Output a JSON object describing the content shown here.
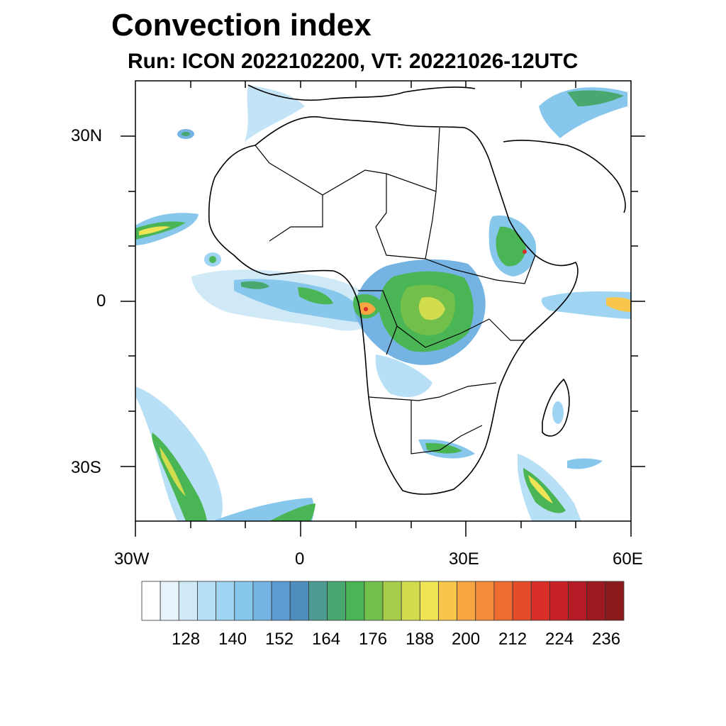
{
  "map": {
    "title": "Convection index",
    "subtitle": "Run: ICON 2022102200,  VT: 20221026-12UTC",
    "lat_labels": [
      "30N",
      "0",
      "30S"
    ],
    "lon_labels": [
      "30W",
      "0",
      "30E",
      "60E"
    ],
    "extent": {
      "lon_min": -30,
      "lon_max": 60,
      "lat_min": -40,
      "lat_max": 40
    }
  },
  "colorbar": {
    "labels": [
      "128",
      "140",
      "152",
      "164",
      "176",
      "188",
      "200",
      "212",
      "224",
      "236"
    ],
    "colors": [
      "#ffffff",
      "#e8f4fb",
      "#cfe9f7",
      "#b7dff5",
      "#9fd5f2",
      "#88c7ec",
      "#74b3e2",
      "#5b9ad3",
      "#4f8dbd",
      "#4d9b93",
      "#49a870",
      "#4ab554",
      "#73bf4c",
      "#a8cd4a",
      "#d1dd4e",
      "#efe356",
      "#f7c64a",
      "#f7a641",
      "#f48b38",
      "#ee6c2f",
      "#e44c2a",
      "#d83029",
      "#c92128",
      "#b51b25",
      "#9e1a21",
      "#8a1a1c"
    ]
  }
}
